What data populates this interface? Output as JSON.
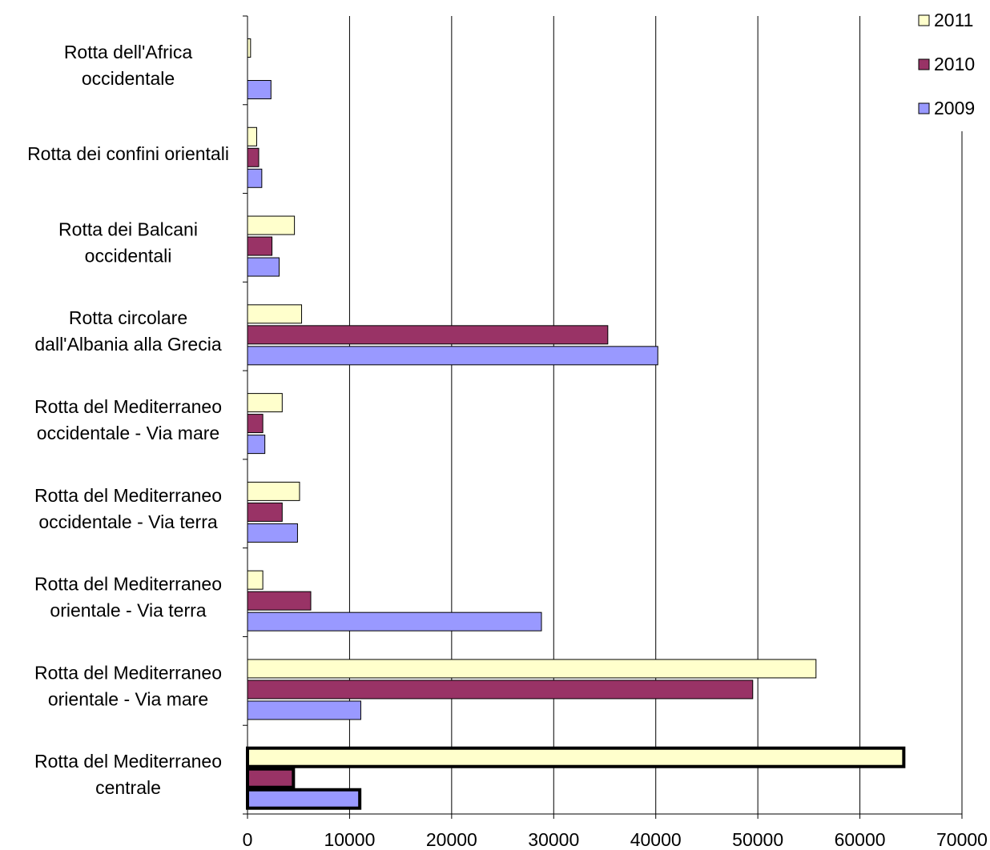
{
  "chart_data": {
    "type": "bar",
    "orientation": "horizontal",
    "categories": [
      [
        "Rotta dell'Africa",
        "occidentale"
      ],
      [
        "Rotta dei confini orientali"
      ],
      [
        "Rotta dei Balcani",
        "occidentali"
      ],
      [
        "Rotta circolare",
        "dall'Albania alla Grecia"
      ],
      [
        "Rotta del Mediterraneo",
        "occidentale - Via mare"
      ],
      [
        "Rotta del Mediterraneo",
        "occidentale - Via terra"
      ],
      [
        "Rotta del Mediterraneo",
        "orientale - Via terra"
      ],
      [
        "Rotta del Mediterraneo",
        "orientale - Via mare"
      ],
      [
        "Rotta del Mediterraneo",
        "centrale"
      ]
    ],
    "series": [
      {
        "name": "2011",
        "color": "#FFFFCC",
        "values": [
          300,
          900,
          4600,
          5300,
          3400,
          5100,
          1500,
          55700,
          64300
        ]
      },
      {
        "name": "2010",
        "color": "#993366",
        "values": [
          0,
          1100,
          2400,
          35300,
          1500,
          3400,
          6200,
          49500,
          4500
        ]
      },
      {
        "name": "2009",
        "color": "#9999FF",
        "values": [
          2300,
          1400,
          3100,
          40200,
          1700,
          4900,
          28800,
          11100,
          11000
        ]
      }
    ],
    "highlighted_category_index": 8,
    "xlim": [
      0,
      70000
    ],
    "xticks": [
      0,
      10000,
      20000,
      30000,
      40000,
      50000,
      60000,
      70000
    ],
    "grid": true,
    "legend": {
      "position": "top-right",
      "order": [
        "2011",
        "2010",
        "2009"
      ]
    },
    "title": "",
    "xlabel": "",
    "ylabel": ""
  }
}
